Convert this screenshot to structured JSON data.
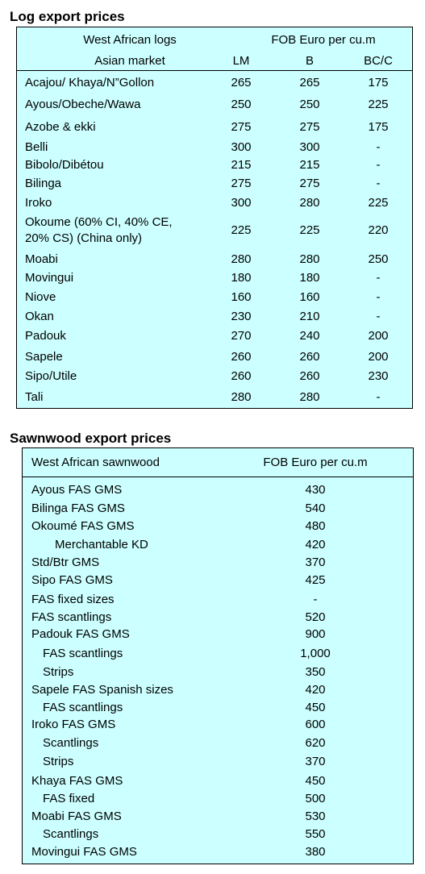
{
  "log_section": {
    "title": "Log export prices",
    "header": {
      "group_label": "West African logs",
      "market_label": "Asian market",
      "price_label": "FOB Euro per cu.m",
      "cols": [
        "LM",
        "B",
        "BC/C"
      ]
    },
    "rows": [
      {
        "name": "Acajou/ Khaya/N”Gollon",
        "lm": "265",
        "b": "265",
        "bcc": "175"
      },
      {
        "name": "Ayous/Obeche/Wawa",
        "lm": "250",
        "b": "250",
        "bcc": "225"
      },
      {
        "name": "Azobe & ekki",
        "lm": "275",
        "b": "275",
        "bcc": "175"
      },
      {
        "name": "Belli",
        "lm": "300",
        "b": "300",
        "bcc": "-"
      },
      {
        "name": "Bibolo/Dibétou",
        "lm": "215",
        "b": "215",
        "bcc": "-"
      },
      {
        "name": "Bilinga",
        "lm": "275",
        "b": "275",
        "bcc": "-"
      },
      {
        "name": "Iroko",
        "lm": "300",
        "b": "280",
        "bcc": "225"
      },
      {
        "name": "Okoume (60% CI, 40% CE,",
        "name2": "20% CS) (China only)",
        "lm": "225",
        "b": "225",
        "bcc": "220"
      },
      {
        "name": "Moabi",
        "lm": "280",
        "b": "280",
        "bcc": "250"
      },
      {
        "name": "Movingui",
        "lm": "180",
        "b": "180",
        "bcc": "-"
      },
      {
        "name": "Niove",
        "lm": "160",
        "b": "160",
        "bcc": "-"
      },
      {
        "name": "Okan",
        "lm": "230",
        "b": "210",
        "bcc": "-"
      },
      {
        "name": "Padouk",
        "lm": "270",
        "b": "240",
        "bcc": "200"
      },
      {
        "name": "Sapele",
        "lm": "260",
        "b": "260",
        "bcc": "200"
      },
      {
        "name": "Sipo/Utile",
        "lm": "260",
        "b": "260",
        "bcc": "230"
      },
      {
        "name": "Tali",
        "lm": "280",
        "b": "280",
        "bcc": "-"
      }
    ]
  },
  "sawn_section": {
    "title": "Sawnwood export prices",
    "header": {
      "group_label": "West African sawnwood",
      "price_label": "FOB Euro per cu.m"
    },
    "rows": [
      {
        "name": "Ayous FAS GMS",
        "price": "430",
        "indent": 0
      },
      {
        "name": "Bilinga FAS GMS",
        "price": "540",
        "indent": 0
      },
      {
        "name": "Okoumé FAS GMS",
        "price": "480",
        "indent": 0
      },
      {
        "name": "Merchantable KD",
        "price": "420",
        "indent": 2
      },
      {
        "name": "Std/Btr GMS",
        "price": "370",
        "indent": 0
      },
      {
        "name": "Sipo FAS GMS",
        "price": "425",
        "indent": 0
      },
      {
        "name": "FAS fixed sizes",
        "price": "-",
        "indent": 0
      },
      {
        "name": "FAS scantlings",
        "price": "520",
        "indent": 0
      },
      {
        "name": "Padouk FAS GMS",
        "price": "900",
        "indent": 0
      },
      {
        "name": "FAS scantlings",
        "price": "1,000",
        "indent": 1
      },
      {
        "name": "Strips",
        "price": "350",
        "indent": 1
      },
      {
        "name": "Sapele FAS Spanish sizes",
        "price": "420",
        "indent": 0
      },
      {
        "name": "FAS scantlings",
        "price": "450",
        "indent": 1
      },
      {
        "name": "Iroko FAS GMS",
        "price": "600",
        "indent": 0
      },
      {
        "name": "Scantlings",
        "price": "620",
        "indent": 1
      },
      {
        "name": "Strips",
        "price": "370",
        "indent": 1
      },
      {
        "name": "Khaya FAS GMS",
        "price": "450",
        "indent": 0
      },
      {
        "name": "FAS fixed",
        "price": "500",
        "indent": 1
      },
      {
        "name": "Moabi FAS GMS",
        "price": "530",
        "indent": 0
      },
      {
        "name": "Scantlings",
        "price": "550",
        "indent": 1
      },
      {
        "name": "Movingui FAS GMS",
        "price": "380",
        "indent": 0
      }
    ]
  }
}
